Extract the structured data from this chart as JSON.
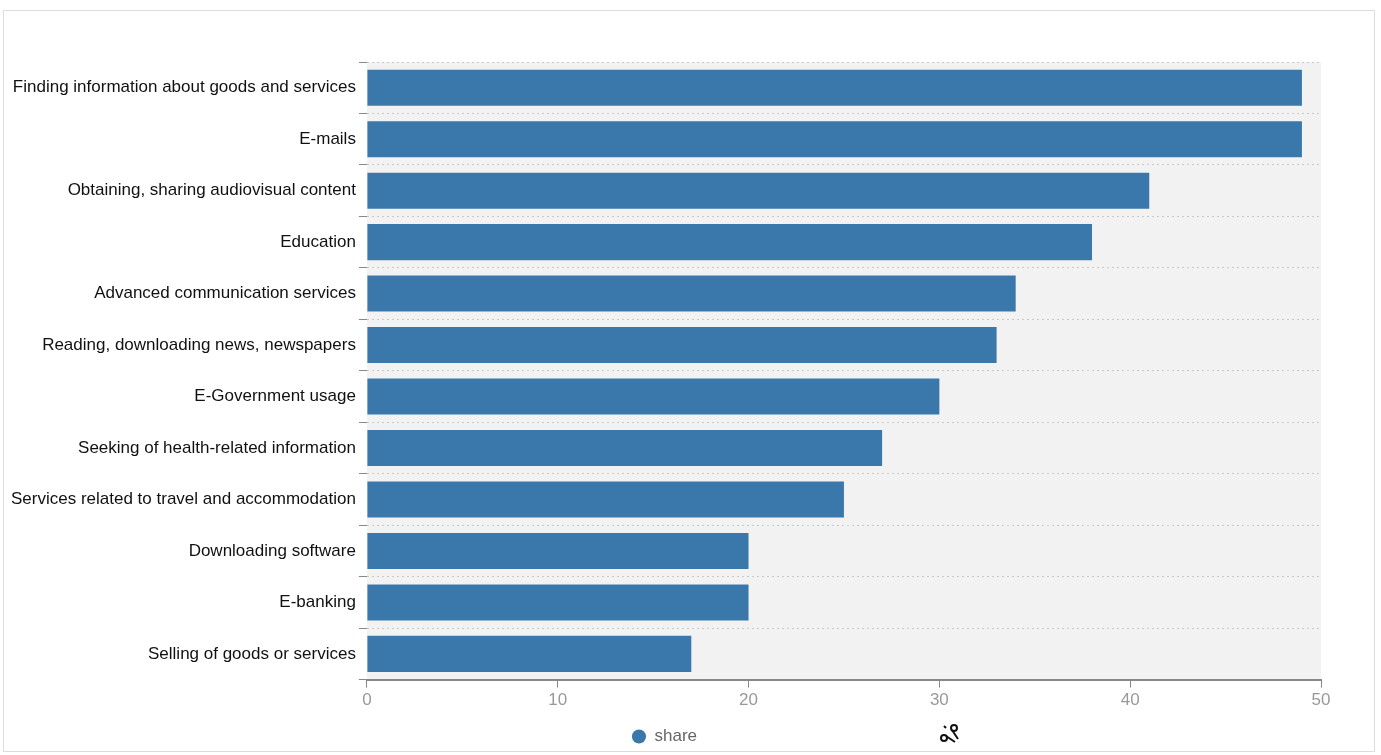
{
  "chart_data": {
    "type": "bar",
    "orientation": "horizontal",
    "categories": [
      "Finding information about goods and services",
      "E-mails",
      "Obtaining, sharing audiovisual content",
      "Education",
      "Advanced communication services",
      "Reading, downloading news, newspapers",
      "E-Government usage",
      "Seeking of health-related information",
      "Services related to travel and accommodation",
      "Downloading software",
      "E-banking",
      "Selling of goods or services"
    ],
    "series": [
      {
        "name": "share",
        "color": "#3a78ab",
        "values": [
          49,
          49,
          41,
          38,
          34,
          33,
          30,
          27,
          25,
          20,
          20,
          17
        ]
      }
    ],
    "xlim": [
      0,
      50
    ],
    "xticks": [
      0,
      10,
      20,
      30,
      40,
      50
    ],
    "grid": "y",
    "legend": "bottom"
  }
}
